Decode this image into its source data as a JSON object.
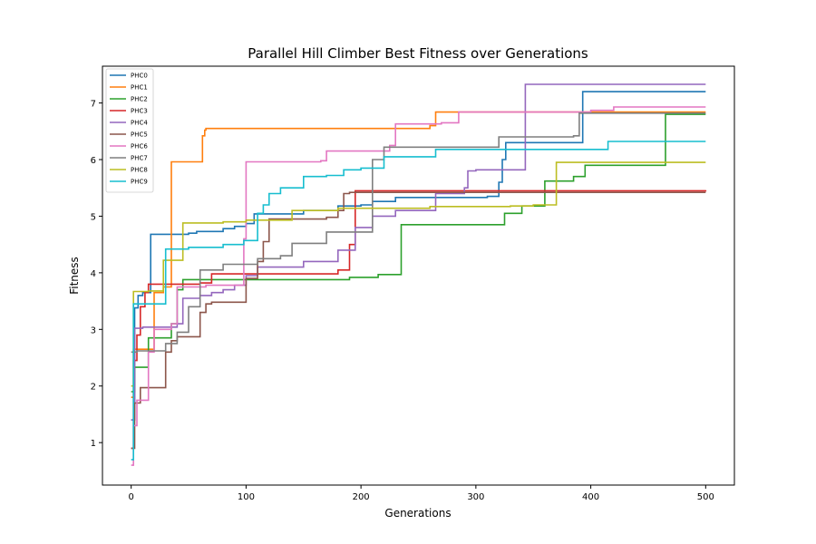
{
  "chart_data": {
    "type": "line",
    "title": "Parallel Hill Climber Best Fitness over Generations",
    "xlabel": "Generations",
    "ylabel": "Fitness",
    "xlim": [
      -25,
      525
    ],
    "ylim": [
      0.25,
      7.65
    ],
    "xticks": [
      0,
      100,
      200,
      300,
      400,
      500
    ],
    "yticks": [
      1,
      2,
      3,
      4,
      5,
      6,
      7
    ],
    "grid": false,
    "legend_position": "top-left",
    "series": [
      {
        "name": "PHC0",
        "color": "#1f77b4",
        "x": [
          0,
          3,
          6,
          10,
          17,
          50,
          57,
          80,
          90,
          100,
          107,
          150,
          180,
          200,
          210,
          230,
          260,
          310,
          320,
          323,
          326,
          390,
          393,
          500
        ],
        "y": [
          1.4,
          3.38,
          3.6,
          3.65,
          4.68,
          4.7,
          4.73,
          4.78,
          4.82,
          4.87,
          5.04,
          5.1,
          5.18,
          5.2,
          5.26,
          5.33,
          5.33,
          5.35,
          5.6,
          6.0,
          6.3,
          6.3,
          7.2,
          7.2
        ]
      },
      {
        "name": "PHC1",
        "color": "#ff7f0e",
        "x": [
          0,
          2,
          10,
          20,
          28,
          35,
          62,
          64,
          65,
          100,
          200,
          260,
          265,
          500
        ],
        "y": [
          1.8,
          2.65,
          2.65,
          3.65,
          3.75,
          5.96,
          6.42,
          6.52,
          6.55,
          6.55,
          6.55,
          6.6,
          6.84,
          6.84
        ]
      },
      {
        "name": "PHC2",
        "color": "#2ca02c",
        "x": [
          0,
          3,
          10,
          15,
          30,
          35,
          40,
          45,
          100,
          150,
          190,
          205,
          215,
          235,
          320,
          325,
          340,
          355,
          360,
          375,
          385,
          395,
          460,
          465,
          500
        ],
        "y": [
          1.9,
          2.33,
          2.33,
          2.85,
          2.85,
          3.1,
          3.7,
          3.88,
          3.88,
          3.88,
          3.92,
          3.92,
          3.97,
          4.85,
          4.85,
          5.05,
          5.18,
          5.18,
          5.62,
          5.62,
          5.7,
          5.9,
          5.9,
          6.8,
          6.8
        ]
      },
      {
        "name": "PHC3",
        "color": "#d62728",
        "x": [
          0,
          2,
          5,
          8,
          12,
          15,
          60,
          70,
          100,
          180,
          190,
          195,
          200,
          300,
          400,
          500
        ],
        "y": [
          0.9,
          2.45,
          2.9,
          3.4,
          3.65,
          3.8,
          3.82,
          3.98,
          3.98,
          4.05,
          4.5,
          5.45,
          5.45,
          5.45,
          5.45,
          5.46
        ]
      },
      {
        "name": "PHC4",
        "color": "#9467bd",
        "x": [
          0,
          3,
          10,
          40,
          45,
          60,
          70,
          80,
          90,
          100,
          110,
          150,
          180,
          195,
          210,
          230,
          265,
          290,
          293,
          300,
          340,
          343,
          500
        ],
        "y": [
          1.4,
          3.02,
          3.04,
          3.1,
          3.55,
          3.6,
          3.65,
          3.7,
          3.78,
          3.95,
          4.1,
          4.2,
          4.4,
          4.8,
          5.0,
          5.1,
          5.4,
          5.5,
          5.8,
          5.82,
          5.82,
          7.33,
          7.33
        ]
      },
      {
        "name": "PHC5",
        "color": "#8c564b",
        "x": [
          0,
          3,
          8,
          25,
          30,
          35,
          40,
          50,
          60,
          65,
          70,
          100,
          110,
          115,
          120,
          150,
          170,
          180,
          185,
          190,
          300,
          500
        ],
        "y": [
          0.9,
          1.7,
          1.97,
          1.97,
          2.6,
          2.8,
          2.87,
          2.87,
          3.3,
          3.45,
          3.48,
          3.9,
          4.2,
          4.55,
          4.95,
          4.95,
          4.98,
          5.1,
          5.4,
          5.42,
          5.42,
          5.42
        ]
      },
      {
        "name": "PHC6",
        "color": "#e377c2",
        "x": [
          0,
          2,
          5,
          15,
          20,
          35,
          40,
          65,
          98,
          100,
          165,
          170,
          200,
          225,
          230,
          270,
          285,
          400,
          420,
          500
        ],
        "y": [
          0.6,
          1.3,
          1.75,
          2.6,
          3.0,
          3.1,
          3.75,
          3.78,
          4.6,
          5.96,
          5.98,
          6.15,
          6.15,
          6.25,
          6.63,
          6.65,
          6.84,
          6.87,
          6.93,
          6.93
        ]
      },
      {
        "name": "PHC7",
        "color": "#7f7f7f",
        "x": [
          0,
          5,
          30,
          40,
          50,
          60,
          80,
          100,
          110,
          130,
          140,
          170,
          210,
          220,
          250,
          320,
          385,
          390,
          500
        ],
        "y": [
          2.6,
          2.62,
          2.75,
          2.95,
          3.4,
          4.05,
          4.15,
          4.15,
          4.25,
          4.3,
          4.52,
          4.72,
          6.0,
          6.22,
          6.22,
          6.4,
          6.42,
          6.82,
          6.82
        ]
      },
      {
        "name": "PHC8",
        "color": "#bcbd22",
        "x": [
          0,
          2,
          15,
          28,
          45,
          80,
          100,
          140,
          160,
          180,
          260,
          330,
          350,
          370,
          500
        ],
        "y": [
          2.0,
          3.67,
          3.68,
          4.22,
          4.88,
          4.9,
          4.93,
          5.1,
          5.1,
          5.14,
          5.17,
          5.18,
          5.2,
          5.95,
          5.95
        ]
      },
      {
        "name": "PHC9",
        "color": "#17becf",
        "x": [
          0,
          2,
          30,
          50,
          80,
          98,
          110,
          115,
          120,
          130,
          150,
          170,
          185,
          200,
          220,
          250,
          265,
          300,
          400,
          415,
          500
        ],
        "y": [
          0.7,
          3.45,
          4.42,
          4.45,
          4.5,
          4.57,
          5.05,
          5.2,
          5.4,
          5.5,
          5.7,
          5.72,
          5.82,
          5.85,
          6.05,
          6.05,
          6.18,
          6.18,
          6.18,
          6.32,
          6.32
        ]
      }
    ]
  }
}
